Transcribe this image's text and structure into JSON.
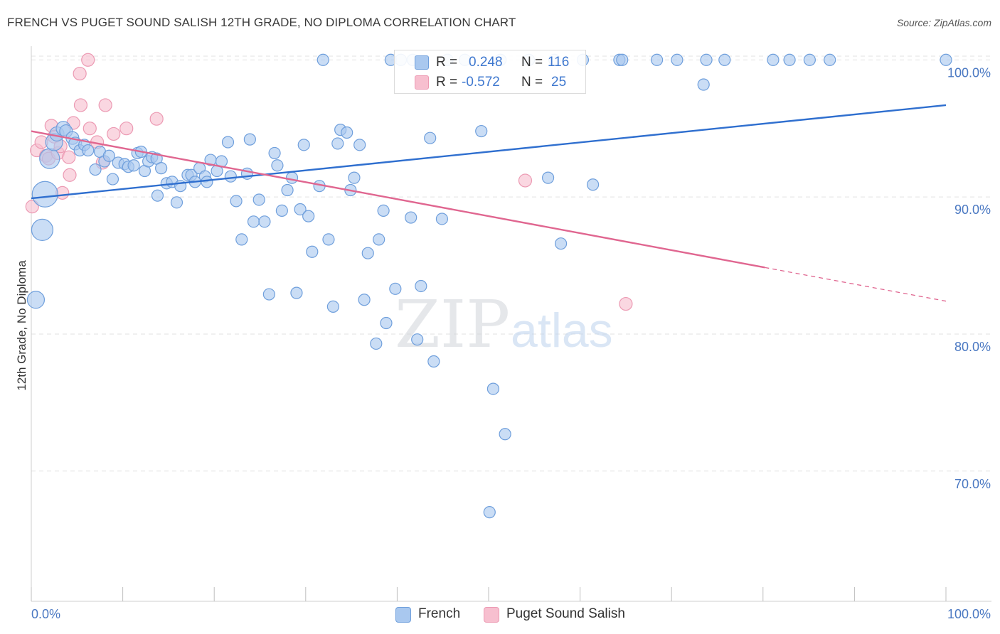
{
  "title": "FRENCH VS PUGET SOUND SALISH 12TH GRADE, NO DIPLOMA CORRELATION CHART",
  "source": "Source: ZipAtlas.com",
  "watermark": {
    "zip": "ZIP",
    "atlas": "atlas"
  },
  "stats": {
    "french": {
      "r_label": "R = ",
      "r_value": "0.248",
      "n_label": "N = ",
      "n_value": "116"
    },
    "salish": {
      "r_label": "R = ",
      "r_value": "-0.572",
      "n_label": "N = ",
      "n_value": "25"
    }
  },
  "legend": {
    "french": "French",
    "salish": "Puget Sound Salish"
  },
  "colors": {
    "french_fill": "#a9c8ef",
    "french_stroke": "#6f9fdc",
    "french_line": "#2f6fcf",
    "salish_fill": "#f7bfcf",
    "salish_stroke": "#ec9ab3",
    "salish_line": "#e06690",
    "tick_text": "#4a78c2",
    "grid": "#e2e2e2"
  },
  "chart_data": {
    "type": "scatter",
    "title": "FRENCH VS PUGET SOUND SALISH 12TH GRADE, NO DIPLOMA CORRELATION CHART",
    "xlabel": "",
    "ylabel": "12th Grade, No Diploma",
    "xlim": [
      0,
      100
    ],
    "ylim": [
      60.5,
      101
    ],
    "x_tick_labels": [
      "0.0%",
      "100.0%"
    ],
    "y_ticks": [
      70,
      80,
      90,
      100
    ],
    "y_tick_labels": [
      "70.0%",
      "80.0%",
      "90.0%",
      "100.0%"
    ],
    "grid": true,
    "legend_position": "bottom-center",
    "series": [
      {
        "name": "French",
        "r": 0.248,
        "n": 116,
        "trend": {
          "x": [
            0,
            100
          ],
          "y": [
            89.9,
            96.7
          ],
          "dashed_from_x": null
        },
        "points": [
          {
            "x": 0.5,
            "y": 82.5,
            "s": 12
          },
          {
            "x": 1.2,
            "y": 87.6,
            "s": 15
          },
          {
            "x": 1.5,
            "y": 90.2,
            "s": 18
          },
          {
            "x": 2.0,
            "y": 92.8,
            "s": 14
          },
          {
            "x": 2.5,
            "y": 94.0,
            "s": 12
          },
          {
            "x": 2.8,
            "y": 94.6,
            "s": 10
          },
          {
            "x": 3.5,
            "y": 95.0,
            "s": 10
          },
          {
            "x": 3.8,
            "y": 94.8,
            "s": 9
          },
          {
            "x": 4.5,
            "y": 94.3,
            "s": 9
          },
          {
            "x": 4.8,
            "y": 93.9,
            "s": 9
          },
          {
            "x": 5.3,
            "y": 93.4,
            "s": 8
          },
          {
            "x": 5.8,
            "y": 93.8,
            "s": 8
          },
          {
            "x": 6.2,
            "y": 93.4,
            "s": 8
          },
          {
            "x": 7.0,
            "y": 92.0,
            "s": 8
          },
          {
            "x": 7.5,
            "y": 93.3,
            "s": 8
          },
          {
            "x": 8.0,
            "y": 92.6,
            "s": 8
          },
          {
            "x": 8.5,
            "y": 93.0,
            "s": 8
          },
          {
            "x": 8.9,
            "y": 91.3,
            "s": 8
          },
          {
            "x": 9.5,
            "y": 92.5,
            "s": 8
          },
          {
            "x": 10.2,
            "y": 92.4,
            "s": 8
          },
          {
            "x": 10.6,
            "y": 92.2,
            "s": 8
          },
          {
            "x": 11.2,
            "y": 92.3,
            "s": 8
          },
          {
            "x": 11.6,
            "y": 93.2,
            "s": 8
          },
          {
            "x": 12.0,
            "y": 93.3,
            "s": 8
          },
          {
            "x": 12.4,
            "y": 91.9,
            "s": 8
          },
          {
            "x": 12.8,
            "y": 92.6,
            "s": 8
          },
          {
            "x": 13.2,
            "y": 92.9,
            "s": 8
          },
          {
            "x": 13.7,
            "y": 92.8,
            "s": 8
          },
          {
            "x": 14.2,
            "y": 92.1,
            "s": 8
          },
          {
            "x": 13.8,
            "y": 90.1,
            "s": 8
          },
          {
            "x": 14.8,
            "y": 91.0,
            "s": 8
          },
          {
            "x": 15.4,
            "y": 91.1,
            "s": 8
          },
          {
            "x": 16.3,
            "y": 90.8,
            "s": 8
          },
          {
            "x": 17.1,
            "y": 91.6,
            "s": 8
          },
          {
            "x": 17.5,
            "y": 91.6,
            "s": 8
          },
          {
            "x": 17.9,
            "y": 91.1,
            "s": 8
          },
          {
            "x": 18.4,
            "y": 92.1,
            "s": 8
          },
          {
            "x": 19.0,
            "y": 91.5,
            "s": 8
          },
          {
            "x": 19.2,
            "y": 91.1,
            "s": 8
          },
          {
            "x": 19.6,
            "y": 92.7,
            "s": 8
          },
          {
            "x": 20.3,
            "y": 91.9,
            "s": 8
          },
          {
            "x": 20.8,
            "y": 92.6,
            "s": 8
          },
          {
            "x": 21.5,
            "y": 94.0,
            "s": 8
          },
          {
            "x": 21.8,
            "y": 91.5,
            "s": 8
          },
          {
            "x": 15.9,
            "y": 89.6,
            "s": 8
          },
          {
            "x": 22.4,
            "y": 89.7,
            "s": 8
          },
          {
            "x": 23.0,
            "y": 86.9,
            "s": 8
          },
          {
            "x": 23.6,
            "y": 91.7,
            "s": 8
          },
          {
            "x": 23.9,
            "y": 94.2,
            "s": 8
          },
          {
            "x": 24.3,
            "y": 88.2,
            "s": 8
          },
          {
            "x": 24.9,
            "y": 89.8,
            "s": 8
          },
          {
            "x": 25.5,
            "y": 88.2,
            "s": 8
          },
          {
            "x": 26.0,
            "y": 82.9,
            "s": 8
          },
          {
            "x": 26.6,
            "y": 93.2,
            "s": 8
          },
          {
            "x": 26.9,
            "y": 92.3,
            "s": 8
          },
          {
            "x": 27.4,
            "y": 89.0,
            "s": 8
          },
          {
            "x": 28.0,
            "y": 90.5,
            "s": 8
          },
          {
            "x": 28.5,
            "y": 91.4,
            "s": 8
          },
          {
            "x": 29.0,
            "y": 83.0,
            "s": 8
          },
          {
            "x": 29.4,
            "y": 89.1,
            "s": 8
          },
          {
            "x": 29.8,
            "y": 93.8,
            "s": 8
          },
          {
            "x": 30.3,
            "y": 88.6,
            "s": 8
          },
          {
            "x": 30.7,
            "y": 86.0,
            "s": 8
          },
          {
            "x": 31.5,
            "y": 90.8,
            "s": 8
          },
          {
            "x": 31.9,
            "y": 100.0,
            "s": 8
          },
          {
            "x": 32.5,
            "y": 86.9,
            "s": 8
          },
          {
            "x": 33.0,
            "y": 82.0,
            "s": 8
          },
          {
            "x": 33.5,
            "y": 93.9,
            "s": 8
          },
          {
            "x": 33.8,
            "y": 94.9,
            "s": 8
          },
          {
            "x": 34.5,
            "y": 94.7,
            "s": 8
          },
          {
            "x": 34.9,
            "y": 90.5,
            "s": 8
          },
          {
            "x": 35.3,
            "y": 91.4,
            "s": 8
          },
          {
            "x": 35.9,
            "y": 93.8,
            "s": 8
          },
          {
            "x": 36.4,
            "y": 82.5,
            "s": 8
          },
          {
            "x": 36.8,
            "y": 85.9,
            "s": 8
          },
          {
            "x": 38.0,
            "y": 86.9,
            "s": 8
          },
          {
            "x": 37.7,
            "y": 79.3,
            "s": 8
          },
          {
            "x": 38.5,
            "y": 89.0,
            "s": 8
          },
          {
            "x": 38.8,
            "y": 80.8,
            "s": 8
          },
          {
            "x": 39.3,
            "y": 100.0,
            "s": 8
          },
          {
            "x": 39.8,
            "y": 83.3,
            "s": 8
          },
          {
            "x": 40.4,
            "y": 100.0,
            "s": 8
          },
          {
            "x": 41.7,
            "y": 100.0,
            "s": 8
          },
          {
            "x": 41.5,
            "y": 88.5,
            "s": 8
          },
          {
            "x": 42.2,
            "y": 79.6,
            "s": 8
          },
          {
            "x": 42.6,
            "y": 83.5,
            "s": 8
          },
          {
            "x": 43.6,
            "y": 94.3,
            "s": 8
          },
          {
            "x": 44.0,
            "y": 78.0,
            "s": 8
          },
          {
            "x": 44.9,
            "y": 88.4,
            "s": 8
          },
          {
            "x": 45.5,
            "y": 100.0,
            "s": 8
          },
          {
            "x": 47.4,
            "y": 100.0,
            "s": 8
          },
          {
            "x": 49.2,
            "y": 94.8,
            "s": 8
          },
          {
            "x": 50.5,
            "y": 76.0,
            "s": 8
          },
          {
            "x": 51.3,
            "y": 100.0,
            "s": 8
          },
          {
            "x": 50.1,
            "y": 67.0,
            "s": 8
          },
          {
            "x": 51.8,
            "y": 72.7,
            "s": 8
          },
          {
            "x": 54.4,
            "y": 100.0,
            "s": 8
          },
          {
            "x": 56.5,
            "y": 91.4,
            "s": 8
          },
          {
            "x": 57.2,
            "y": 100.0,
            "s": 8
          },
          {
            "x": 57.9,
            "y": 86.6,
            "s": 8
          },
          {
            "x": 60.3,
            "y": 100.0,
            "s": 8
          },
          {
            "x": 61.4,
            "y": 90.9,
            "s": 8
          },
          {
            "x": 64.3,
            "y": 100.0,
            "s": 8
          },
          {
            "x": 64.6,
            "y": 100.0,
            "s": 8
          },
          {
            "x": 68.4,
            "y": 100.0,
            "s": 8
          },
          {
            "x": 70.6,
            "y": 100.0,
            "s": 8
          },
          {
            "x": 73.8,
            "y": 100.0,
            "s": 8
          },
          {
            "x": 73.5,
            "y": 98.2,
            "s": 8
          },
          {
            "x": 75.8,
            "y": 100.0,
            "s": 8
          },
          {
            "x": 81.1,
            "y": 100.0,
            "s": 8
          },
          {
            "x": 82.9,
            "y": 100.0,
            "s": 8
          },
          {
            "x": 85.1,
            "y": 100.0,
            "s": 8
          },
          {
            "x": 87.3,
            "y": 100.0,
            "s": 8
          },
          {
            "x": 100.0,
            "y": 100.0,
            "s": 8
          }
        ]
      },
      {
        "name": "Puget Sound Salish",
        "r": -0.572,
        "n": 25,
        "trend": {
          "x": [
            0,
            100
          ],
          "y": [
            94.8,
            82.4
          ],
          "dashed_from_x": 80.2
        },
        "points": [
          {
            "x": 0.1,
            "y": 89.3,
            "s": 9
          },
          {
            "x": 0.6,
            "y": 93.4,
            "s": 9
          },
          {
            "x": 1.1,
            "y": 94.0,
            "s": 9
          },
          {
            "x": 1.6,
            "y": 93.0,
            "s": 9
          },
          {
            "x": 1.9,
            "y": 92.8,
            "s": 9
          },
          {
            "x": 2.2,
            "y": 95.2,
            "s": 9
          },
          {
            "x": 2.5,
            "y": 94.4,
            "s": 9
          },
          {
            "x": 2.9,
            "y": 93.2,
            "s": 9
          },
          {
            "x": 3.2,
            "y": 93.7,
            "s": 9
          },
          {
            "x": 3.4,
            "y": 90.3,
            "s": 9
          },
          {
            "x": 4.1,
            "y": 92.9,
            "s": 9
          },
          {
            "x": 4.2,
            "y": 91.6,
            "s": 9
          },
          {
            "x": 4.6,
            "y": 95.4,
            "s": 9
          },
          {
            "x": 5.3,
            "y": 99.0,
            "s": 9
          },
          {
            "x": 5.4,
            "y": 96.7,
            "s": 9
          },
          {
            "x": 6.4,
            "y": 95.0,
            "s": 9
          },
          {
            "x": 6.2,
            "y": 100.0,
            "s": 9
          },
          {
            "x": 7.2,
            "y": 94.0,
            "s": 9
          },
          {
            "x": 7.8,
            "y": 92.5,
            "s": 9
          },
          {
            "x": 8.1,
            "y": 96.7,
            "s": 9
          },
          {
            "x": 9.0,
            "y": 94.6,
            "s": 9
          },
          {
            "x": 10.4,
            "y": 95.0,
            "s": 9
          },
          {
            "x": 13.7,
            "y": 95.7,
            "s": 9
          },
          {
            "x": 54.0,
            "y": 91.2,
            "s": 9
          },
          {
            "x": 65.0,
            "y": 82.2,
            "s": 9
          }
        ]
      }
    ]
  }
}
